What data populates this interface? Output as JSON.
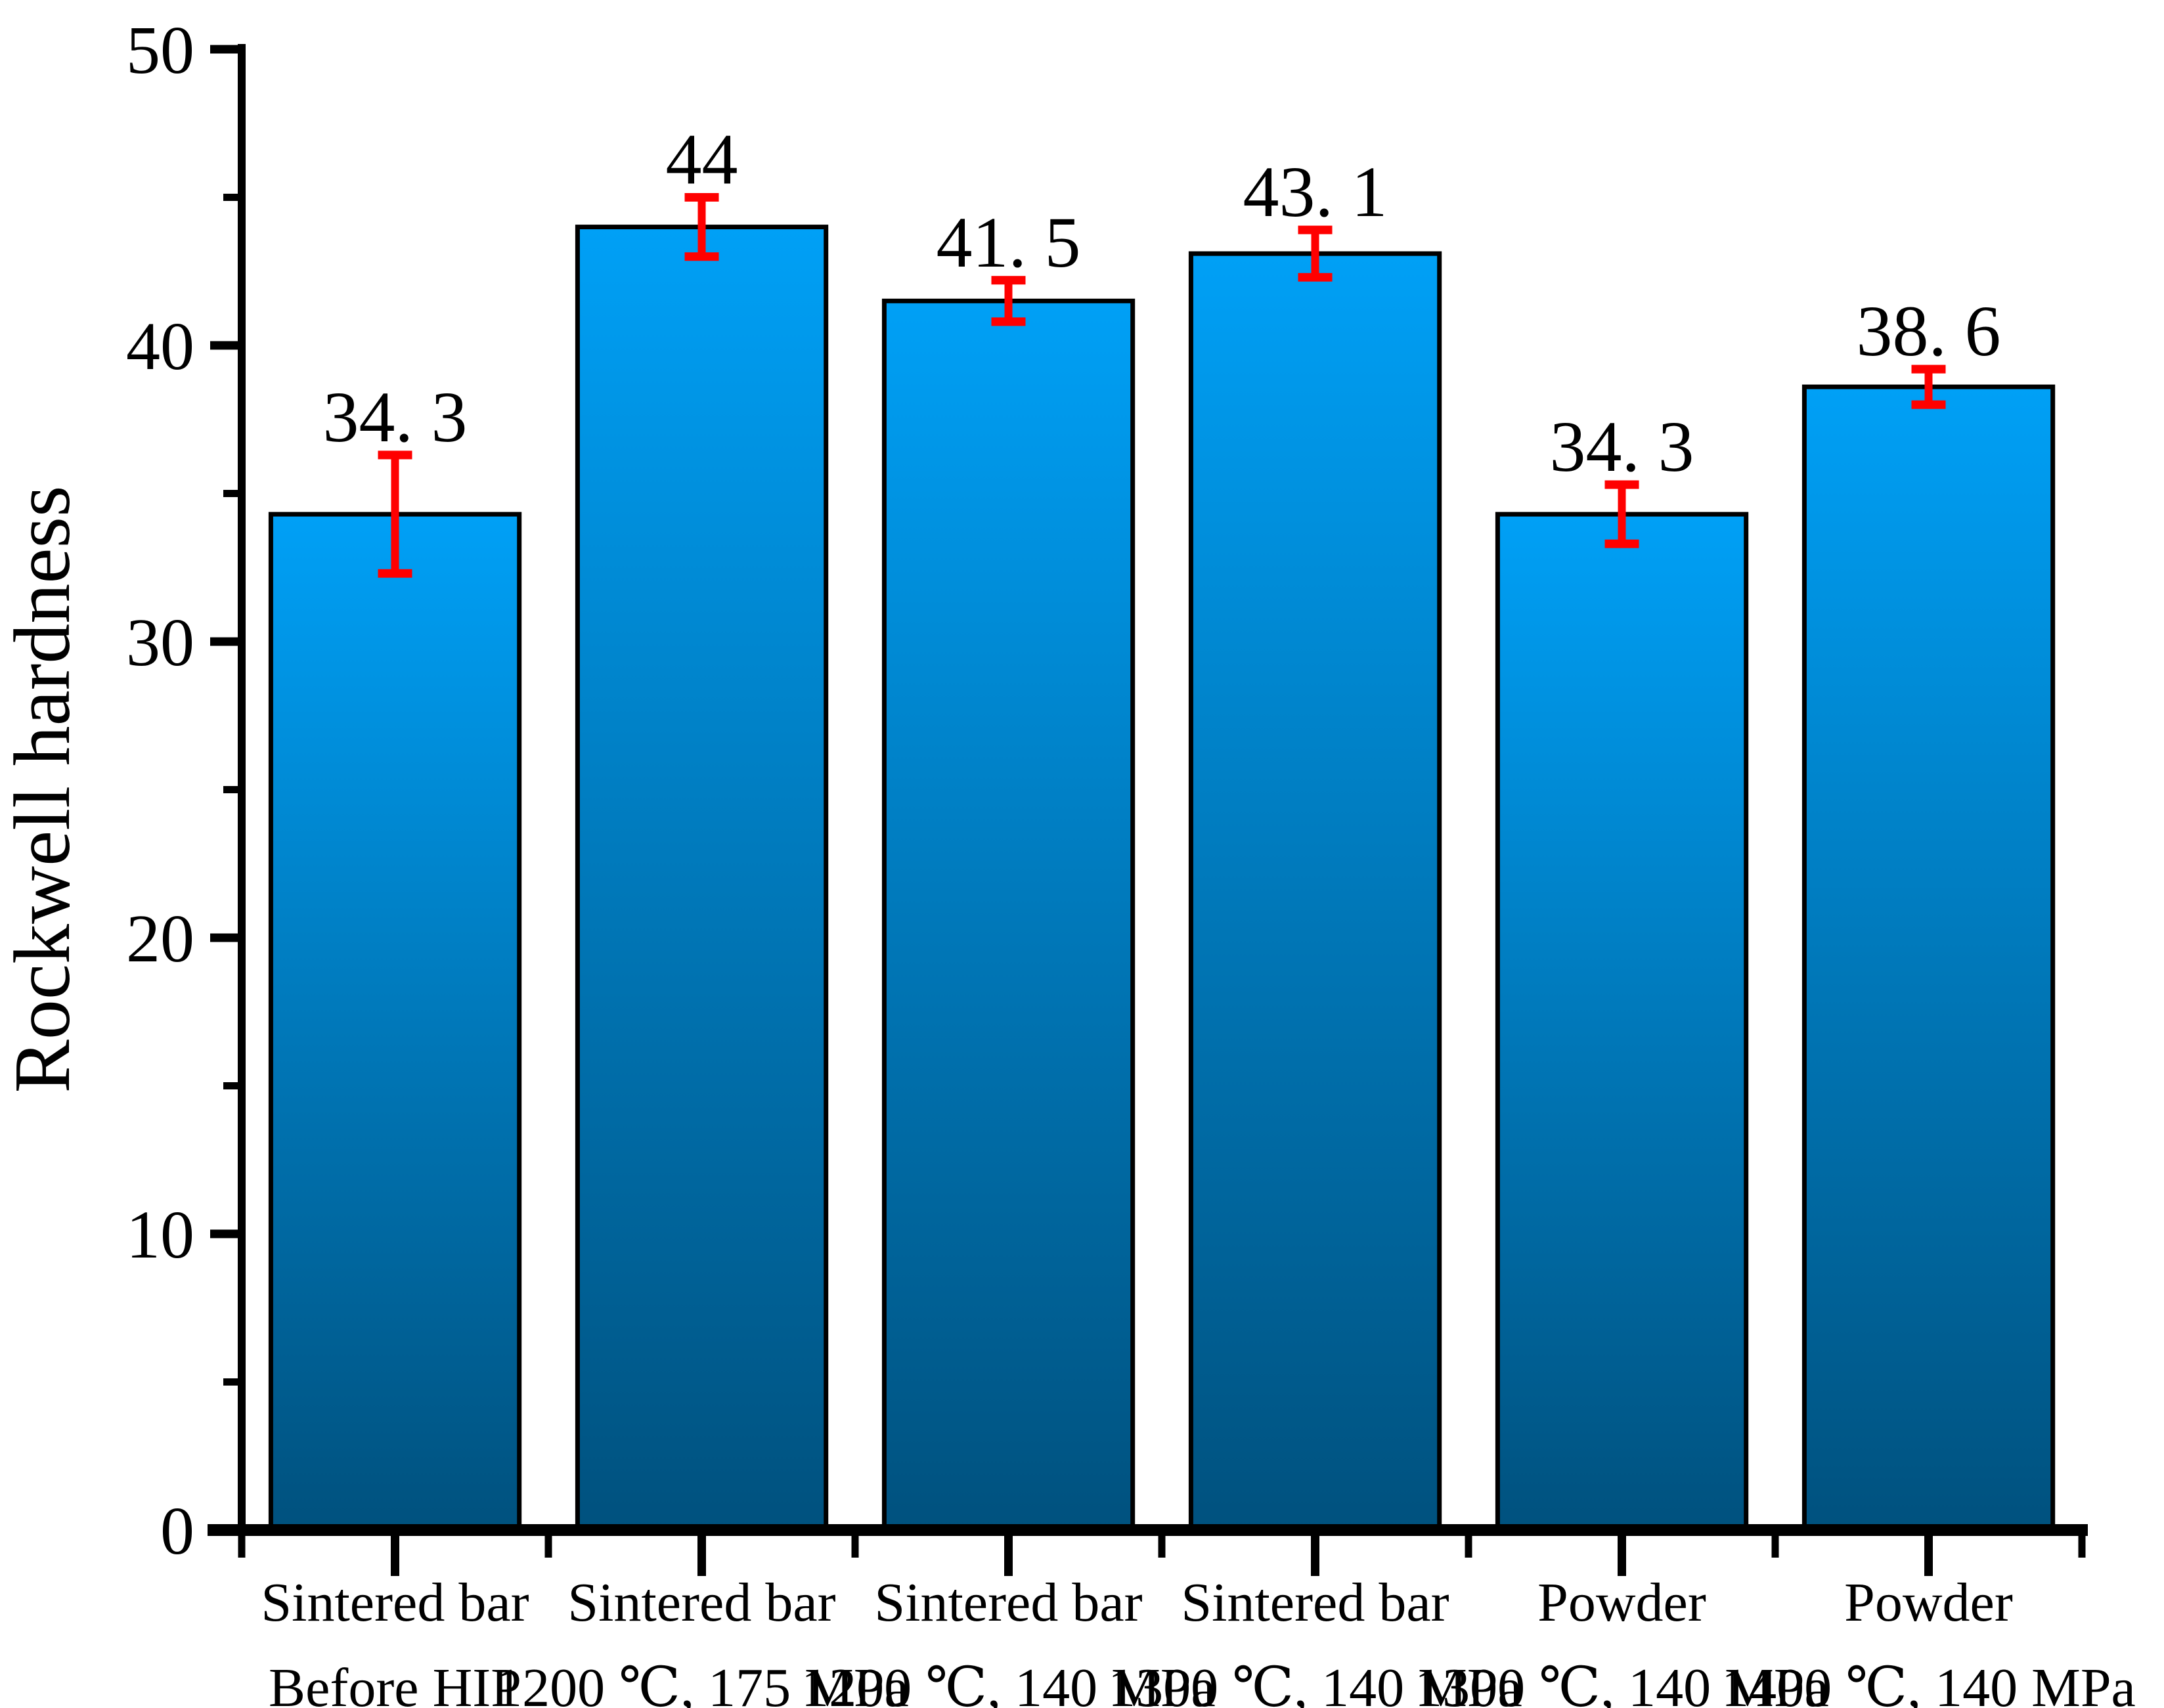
{
  "page": {
    "background": "#FFFFFF"
  },
  "chart_data": {
    "type": "bar",
    "title": "",
    "xlabel": "",
    "ylabel": "Rockwell hardness",
    "ylim": [
      0,
      50
    ],
    "y_major_ticks": [
      0,
      10,
      20,
      30,
      40,
      50
    ],
    "y_minor_ticks": [
      5,
      15,
      25,
      35,
      45
    ],
    "grid": false,
    "legend": null,
    "categories": [
      {
        "material": "Sintered bar",
        "condition": "Before HIP"
      },
      {
        "material": "Sintered bar",
        "condition": "1200 ℃, 175 MPa"
      },
      {
        "material": "Sintered bar",
        "condition": "1200 ℃, 140 MPa"
      },
      {
        "material": "Sintered bar",
        "condition": "1300 ℃, 140 MPa"
      },
      {
        "material": "Powder",
        "condition": "1300 ℃, 140 MPa"
      },
      {
        "material": "Powder",
        "condition": "1400 ℃, 140 MPa"
      }
    ],
    "values": [
      34.3,
      44,
      41.5,
      43.1,
      34.3,
      38.6
    ],
    "value_labels": [
      "34.3",
      "44",
      "41.5",
      "43.1",
      "34.3",
      "38.6"
    ],
    "error_bars": [
      2.0,
      1.0,
      0.7,
      0.8,
      1.0,
      0.6
    ],
    "colors": {
      "bar_gradient_top": "#00A0F6",
      "bar_gradient_bottom": "#00517E",
      "bar_outline": "#000000",
      "error_bar": "#FF0000",
      "axis": "#000000",
      "text": "#000000",
      "background": "#FFFFFF"
    }
  }
}
